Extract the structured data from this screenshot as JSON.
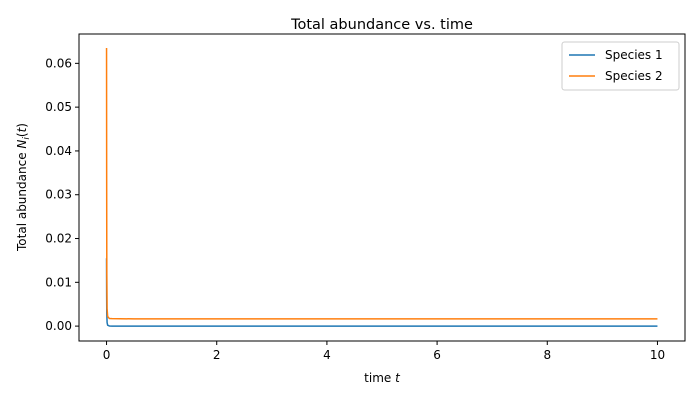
{
  "chart_data": {
    "type": "line",
    "title": "Total abundance vs. time",
    "xlabel": "time t",
    "ylabel": "Total abundance N_i(t)",
    "xlim": [
      -0.5,
      10.5
    ],
    "ylim": [
      -0.0034,
      0.0667
    ],
    "xticks": [
      "0",
      "2",
      "4",
      "6",
      "8",
      "10"
    ],
    "yticks": [
      "0.00",
      "0.01",
      "0.02",
      "0.03",
      "0.04",
      "0.05",
      "0.06"
    ],
    "grid": false,
    "legend_position": "top-right",
    "series": [
      {
        "name": "Species 1",
        "color": "#1f77b4",
        "x": [
          0,
          0.001,
          0.002,
          0.004,
          0.01,
          0.02,
          0.05,
          0.1,
          0.5,
          1,
          2,
          4,
          6,
          8,
          10
        ],
        "y": [
          0.0155,
          0.011,
          0.007,
          0.003,
          0.0008,
          0.0002,
          3e-05,
          1e-05,
          3e-06,
          1e-06,
          0.0,
          0.0,
          0.0,
          0.0,
          0.0
        ]
      },
      {
        "name": "Species 2",
        "color": "#ff7f0e",
        "x": [
          0,
          0.002,
          0.005,
          0.01,
          0.02,
          0.05,
          0.1,
          0.5,
          1,
          2,
          4,
          6,
          8,
          10
        ],
        "y": [
          0.0635,
          0.035,
          0.012,
          0.004,
          0.0022,
          0.00175,
          0.0017,
          0.00165,
          0.00165,
          0.00165,
          0.00165,
          0.00165,
          0.00165,
          0.00165
        ]
      }
    ]
  }
}
